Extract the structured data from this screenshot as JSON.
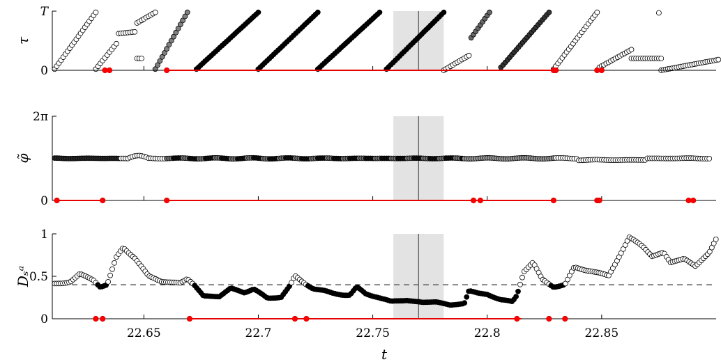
{
  "chart_data": {
    "type": "scatter",
    "xlabel": "t",
    "xlim": [
      22.61,
      22.9
    ],
    "xticks": [
      "22.65",
      "22.7",
      "22.75",
      "22.8",
      "22.85"
    ],
    "xtick_values": [
      22.65,
      22.7,
      22.75,
      22.8,
      22.85
    ],
    "shaded_region": [
      22.759,
      22.781
    ],
    "vertical_line": 22.77,
    "panels": [
      {
        "ylabel": "τ",
        "ylim": [
          0,
          1
        ],
        "yticks": [
          "0",
          "T"
        ],
        "ytick_values": [
          0,
          1
        ],
        "segments": [
          {
            "x": [
              22.611,
              22.629
            ],
            "y": [
              0.02,
              0.98
            ],
            "shade": 1.0
          },
          {
            "x": [
              22.629,
              22.638
            ],
            "y": [
              0.02,
              0.45
            ],
            "shade": 1.0
          },
          {
            "x": [
              22.639,
              22.646
            ],
            "y": [
              0.62,
              0.65
            ],
            "shade": 1.0
          },
          {
            "x": [
              22.647,
              22.649
            ],
            "y": [
              0.2,
              0.2
            ],
            "shade": 1.0
          },
          {
            "x": [
              22.647,
              22.655
            ],
            "y": [
              0.8,
              0.98
            ],
            "shade": 1.0
          },
          {
            "x": [
              22.655,
              22.669
            ],
            "y": [
              0.02,
              0.98
            ],
            "shade": 0.5
          },
          {
            "x": [
              22.673,
              22.7
            ],
            "y": [
              0.02,
              0.98
            ],
            "shade": 0.0
          },
          {
            "x": [
              22.7,
              22.726
            ],
            "y": [
              0.02,
              0.98
            ],
            "shade": 0.0
          },
          {
            "x": [
              22.726,
              22.753
            ],
            "y": [
              0.02,
              0.98
            ],
            "shade": 0.0
          },
          {
            "x": [
              22.756,
              22.781
            ],
            "y": [
              0.02,
              0.98
            ],
            "shade": 0.0
          },
          {
            "x": [
              22.781,
              22.792
            ],
            "y": [
              0.0,
              0.25
            ],
            "shade": 1.0
          },
          {
            "x": [
              22.793,
              22.801
            ],
            "y": [
              0.55,
              0.98
            ],
            "shade": 0.4
          },
          {
            "x": [
              22.806,
              22.827
            ],
            "y": [
              0.05,
              0.98
            ],
            "shade": 0.2
          },
          {
            "x": [
              22.829,
              22.848
            ],
            "y": [
              0.02,
              0.98
            ],
            "shade": 1.0
          },
          {
            "x": [
              22.849,
              22.863
            ],
            "y": [
              0.05,
              0.35
            ],
            "shade": 1.0
          },
          {
            "x": [
              22.863,
              22.876
            ],
            "y": [
              0.2,
              0.2
            ],
            "shade": 1.0
          },
          {
            "x": [
              22.876,
              22.901
            ],
            "y": [
              0.0,
              0.18
            ],
            "shade": 1.0
          }
        ],
        "isolated_points": [
          {
            "x": 22.875,
            "y": 0.97
          }
        ],
        "red_lines": [
          [
            22.66,
            22.83
          ]
        ],
        "red_points": [
          22.633,
          22.635,
          22.66,
          22.829,
          22.83,
          22.848,
          22.85
        ]
      },
      {
        "ylabel": "φ̃",
        "ylim": [
          0,
          6.2832
        ],
        "yticks": [
          "0",
          "2π"
        ],
        "ytick_values": [
          0,
          6.2832
        ],
        "series_y": 3.14,
        "red_lines": [
          [
            22.612,
            22.632
          ],
          [
            22.66,
            22.83
          ]
        ],
        "red_points": [
          22.612,
          22.632,
          22.66,
          22.794,
          22.797,
          22.829,
          22.848,
          22.849,
          22.888,
          22.89
        ]
      },
      {
        "ylabel": "Dₛᵃ",
        "ylim": [
          0,
          1
        ],
        "yticks": [
          "0",
          "0.5",
          "1"
        ],
        "ytick_values": [
          0,
          0.5,
          1
        ],
        "threshold": 0.4,
        "red_lines": [
          [
            22.67,
            22.815
          ]
        ],
        "red_points": [
          22.629,
          22.632,
          22.67,
          22.716,
          22.721,
          22.813,
          22.827,
          22.834
        ]
      }
    ]
  }
}
